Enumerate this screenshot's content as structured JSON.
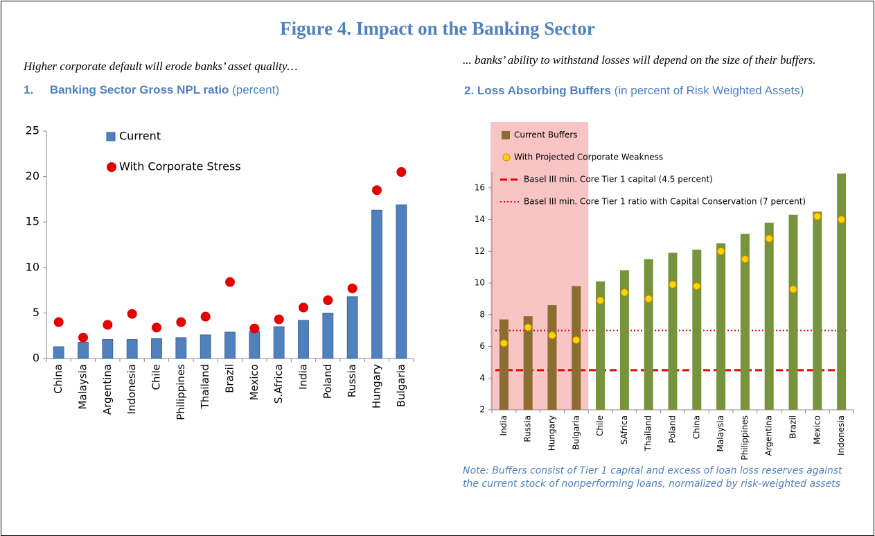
{
  "title": "Figure 4. Impact on the Banking Sector",
  "left": {
    "caption": "Higher corporate default will erode banks’ asset quality…",
    "number": "1.",
    "heading": "Banking Sector Gross NPL ratio",
    "unit": "(percent)"
  },
  "right": {
    "caption": "... banks’ ability  to withstand losses will depend on the size of their buffers.",
    "number": "2.",
    "heading": "Loss Absorbing Buffers",
    "unit": "(in percent of Risk Weighted Assets)",
    "note": "Note: Buffers consist of Tier 1 capital and excess of loan loss reserves against the current stock of nonperforming loans, normalized by risk-weighted assets"
  },
  "chart_data": [
    {
      "type": "bar",
      "categories": [
        "China",
        "Malaysia",
        "Argentina",
        "Indonesia",
        "Chile",
        "Philippines",
        "Thailand",
        "Brazil",
        "Mexico",
        "S.Africa",
        "India",
        "Poland",
        "Russia",
        "Hungary",
        "Bulgaria"
      ],
      "series": [
        {
          "name": "Current",
          "kind": "bar",
          "color": "#4f81bd",
          "values": [
            1.3,
            1.8,
            2.1,
            2.1,
            2.2,
            2.3,
            2.6,
            2.9,
            3.0,
            3.5,
            4.2,
            5.0,
            6.8,
            16.3,
            16.9
          ]
        },
        {
          "name": "With Corporate Stress",
          "kind": "dot",
          "color": "#e60000",
          "values": [
            4.0,
            2.3,
            3.7,
            4.9,
            3.4,
            4.0,
            4.6,
            8.4,
            3.3,
            4.3,
            5.6,
            6.4,
            7.7,
            18.5,
            20.5
          ]
        }
      ],
      "ylim": [
        0,
        25
      ],
      "yticks": [
        0,
        5,
        10,
        15,
        20,
        25
      ]
    },
    {
      "type": "bar",
      "categories": [
        "India",
        "Russia",
        "Hungary",
        "Bulgaria",
        "Chile",
        "SAfrica",
        "Thailand",
        "Poland",
        "China",
        "Malaysia",
        "Philippines",
        "Argentina",
        "Brazil",
        "Mexico",
        "Indonesia"
      ],
      "series": [
        {
          "name": "Current Buffers",
          "kind": "bar",
          "color": "#8c6d31",
          "colors": [
            "#8c6d31",
            "#8c6d31",
            "#8c6d31",
            "#8c6d31",
            "#77933c",
            "#77933c",
            "#77933c",
            "#77933c",
            "#77933c",
            "#77933c",
            "#77933c",
            "#77933c",
            "#77933c",
            "#77933c",
            "#77933c"
          ],
          "values": [
            7.7,
            7.9,
            8.6,
            9.8,
            10.1,
            10.8,
            11.5,
            11.9,
            12.1,
            12.5,
            13.1,
            13.8,
            14.3,
            14.5,
            16.9
          ]
        },
        {
          "name": "With Projected Corporate Weakness",
          "kind": "dot",
          "color": "#ffd700",
          "values": [
            6.2,
            7.2,
            6.7,
            6.4,
            8.9,
            9.4,
            9.0,
            9.9,
            9.8,
            12.0,
            11.5,
            12.8,
            9.6,
            14.2,
            14.0
          ]
        }
      ],
      "reference_lines": [
        {
          "name": "Basel III min. Core Tier 1 capital (4.5 percent)",
          "value": 4.5,
          "color": "#e60000",
          "dash": "dashed"
        },
        {
          "name": "Basel III min. Core Tier 1 ratio with Capital Conservation (7 percent)",
          "value": 7,
          "color": "#e60000",
          "dash": "dotted"
        }
      ],
      "shade_first": 4,
      "shade_color": "#f8c4c4",
      "ylim": [
        2,
        17
      ],
      "yticks": [
        2,
        4,
        6,
        8,
        10,
        12,
        14,
        16
      ]
    }
  ]
}
